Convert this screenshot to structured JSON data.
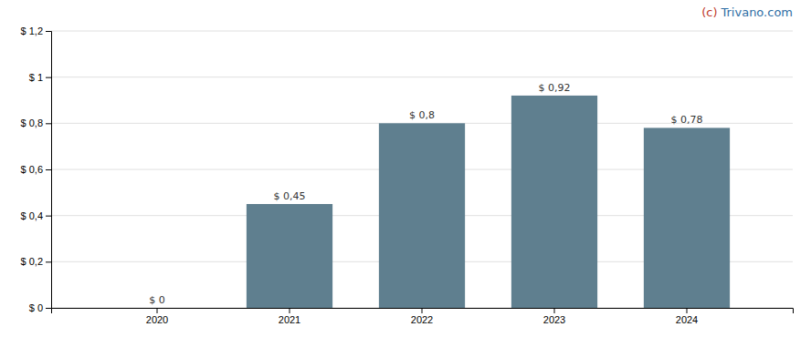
{
  "chart_data": {
    "type": "bar",
    "categories": [
      "2020",
      "2021",
      "2022",
      "2023",
      "2024"
    ],
    "values": [
      0.0,
      0.45,
      0.8,
      0.92,
      0.78
    ],
    "value_labels": [
      "$ 0",
      "$ 0,45",
      "$ 0,8",
      "$ 0,92",
      "$ 0,78"
    ],
    "data_labels": true,
    "color": "#5f7f8f",
    "ylim": [
      0,
      1.2
    ],
    "yticks": [
      {
        "value": 0,
        "label": "$ 0"
      },
      {
        "value": 0.2,
        "label": "$ 0,2"
      },
      {
        "value": 0.4,
        "label": "$ 0,4"
      },
      {
        "value": 0.6,
        "label": "$ 0,6"
      },
      {
        "value": 0.8,
        "label": "$ 0,8"
      },
      {
        "value": 1.0,
        "label": "$ 1"
      },
      {
        "value": 1.2,
        "label": "$ 1,2"
      }
    ],
    "grid": true,
    "annotations": [
      {
        "text": "(c)",
        "color": "#c0392b"
      },
      {
        "text": "Trivano.com",
        "color": "#2e6da4"
      }
    ]
  }
}
